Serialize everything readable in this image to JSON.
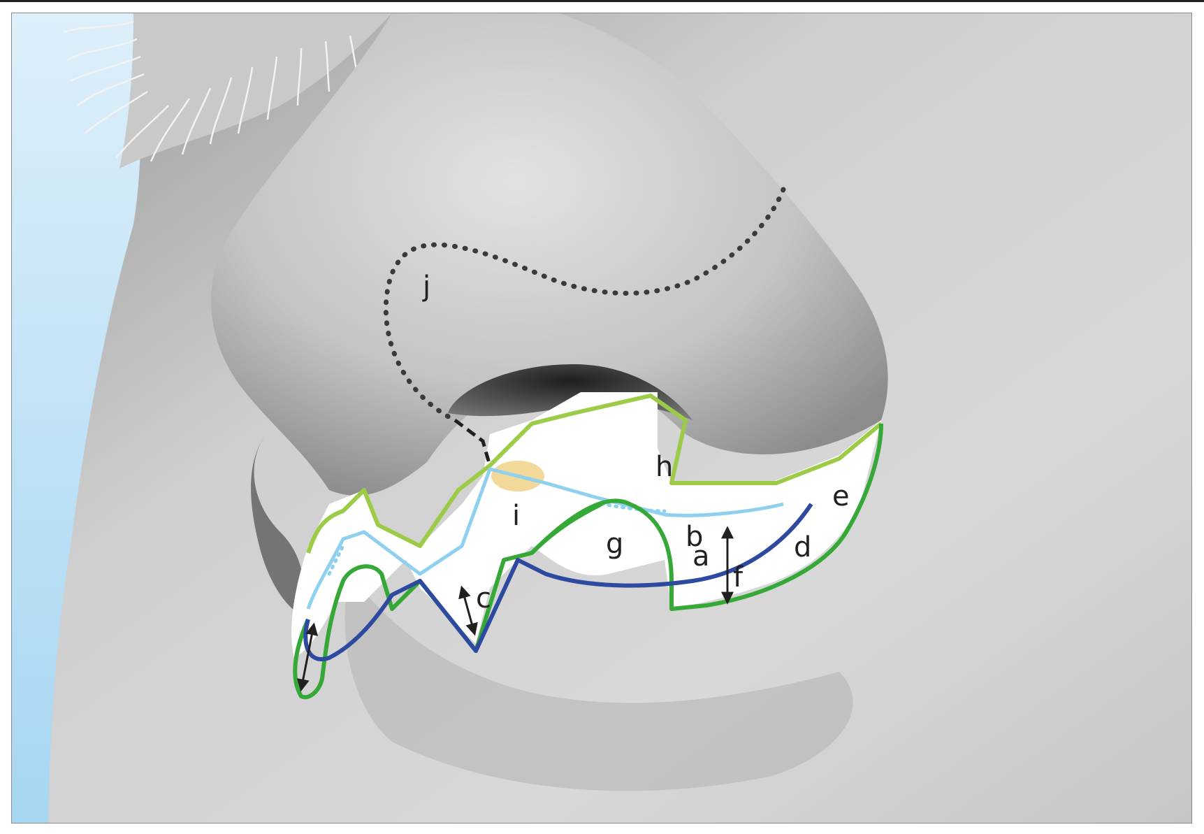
{
  "labels": {
    "a": "a",
    "b": "b",
    "c": "c",
    "d": "d",
    "e": "e",
    "f": "f",
    "g": "g",
    "h": "h",
    "i": "i",
    "j": "j"
  },
  "colors": {
    "background_sky": "#a6d6f2",
    "skin_light": "#d9d9d9",
    "skin_shadow": "#8e8e8e",
    "skin_dark": "#3d3d3d",
    "outline_light_green": "#9ccc47",
    "outline_green": "#35a838",
    "outline_light_blue": "#8ed0ee",
    "outline_dark_blue": "#2e4aa0",
    "cartilage_yellow": "#f2d99a",
    "dotted_line": "#3a3a3a",
    "arrow": "#231f20"
  }
}
